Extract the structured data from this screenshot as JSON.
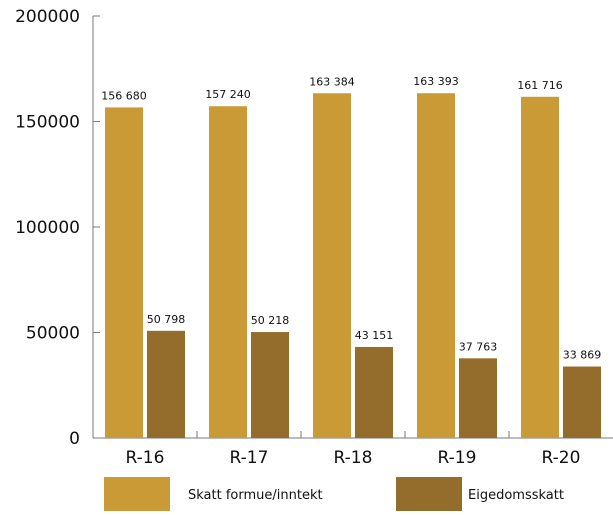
{
  "chart_data": {
    "type": "bar",
    "categories": [
      "R-16",
      "R-17",
      "R-18",
      "R-19",
      "R-20"
    ],
    "series": [
      {
        "name": "Skatt formue/inntekt",
        "values": [
          156680,
          157240,
          163384,
          163393,
          161716
        ],
        "labels": [
          "156 680",
          "157 240",
          "163 384",
          "163 393",
          "161 716"
        ],
        "color": "#c99a35"
      },
      {
        "name": "Eigedomsskatt",
        "values": [
          50798,
          50218,
          43151,
          37763,
          33869
        ],
        "labels": [
          "50 798",
          "50 218",
          "43 151",
          "37 763",
          "33 869"
        ],
        "color": "#946d2c"
      }
    ],
    "ylim": [
      0,
      200000
    ],
    "yticks": [
      0,
      50000,
      100000,
      150000,
      200000
    ],
    "ytick_labels": [
      "0",
      "50000",
      "100000",
      "150000",
      "200000"
    ],
    "grid": false,
    "legend_position": "bottom",
    "axis_color": "#7a7a7a"
  }
}
